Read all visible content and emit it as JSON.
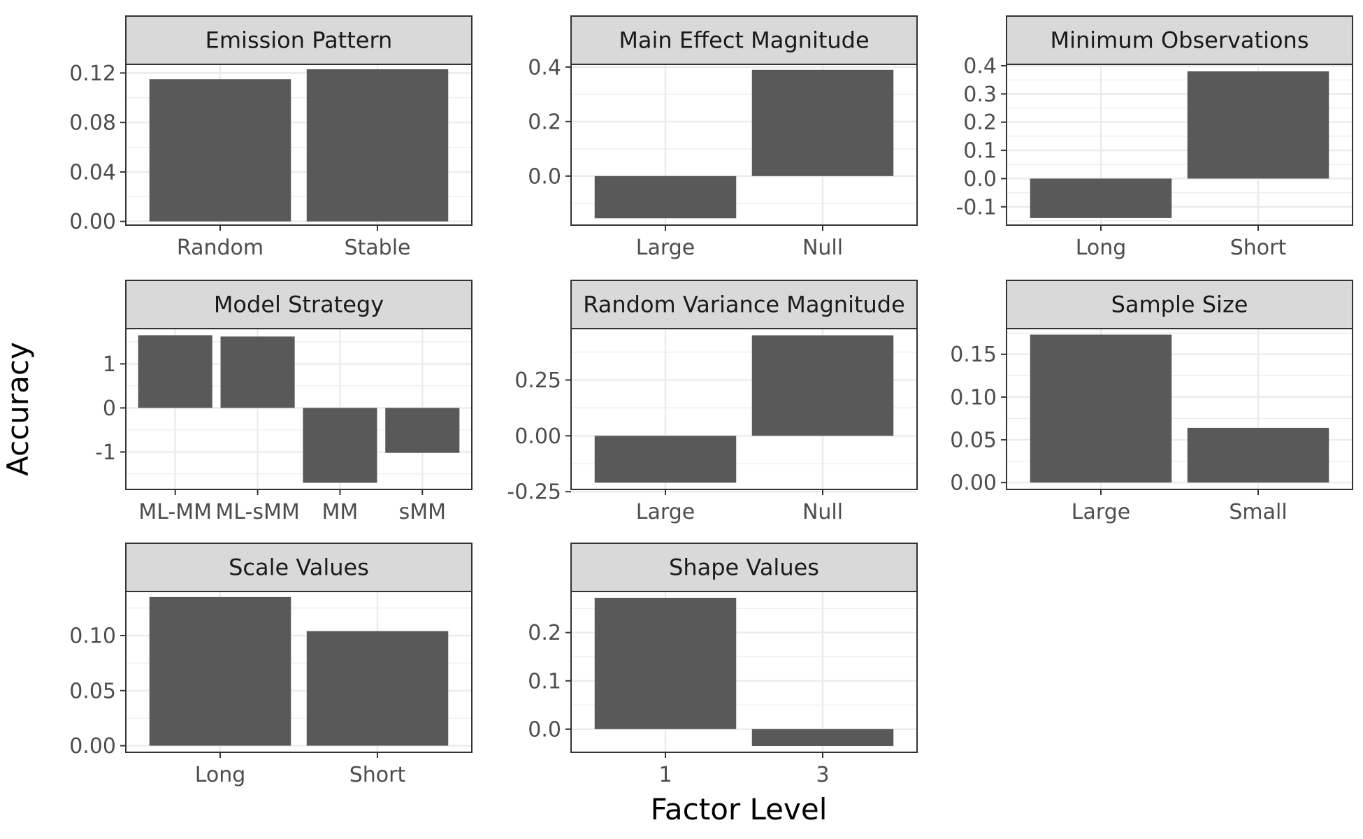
{
  "chart_data": {
    "type": "bar",
    "xlabel": "Factor Level",
    "ylabel": "Accuracy",
    "grid": true,
    "colors": {
      "bar": "#595959",
      "strip_fill": "#d9d9d9",
      "panel_border": "#333333",
      "grid": "#ebebeb"
    },
    "panels": [
      {
        "title": "Emission Pattern",
        "categories": [
          "Random",
          "Stable"
        ],
        "values": [
          0.115,
          0.123
        ],
        "ylim": [
          -0.003,
          0.127
        ],
        "yticks": [
          0.0,
          0.04,
          0.08,
          0.12
        ],
        "tick_labels": [
          "0.00",
          "0.04",
          "0.08",
          "0.12"
        ]
      },
      {
        "title": "Main Effect Magnitude",
        "categories": [
          "Large",
          "Null"
        ],
        "values": [
          -0.155,
          0.39
        ],
        "ylim": [
          -0.18,
          0.41
        ],
        "yticks": [
          0.0,
          0.2,
          0.4
        ],
        "tick_labels": [
          "0.0",
          "0.2",
          "0.4"
        ]
      },
      {
        "title": "Minimum Observations",
        "categories": [
          "Long",
          "Short"
        ],
        "values": [
          -0.14,
          0.38
        ],
        "ylim": [
          -0.165,
          0.405
        ],
        "yticks": [
          -0.1,
          0.0,
          0.1,
          0.2,
          0.3,
          0.4
        ],
        "tick_labels": [
          "-0.1",
          "0.0",
          "0.1",
          "0.2",
          "0.3",
          "0.4"
        ]
      },
      {
        "title": "Model Strategy",
        "categories": [
          "ML-MM",
          "ML-sMM",
          "MM",
          "sMM"
        ],
        "values": [
          1.65,
          1.62,
          -1.7,
          -1.02
        ],
        "ylim": [
          -1.85,
          1.8
        ],
        "yticks": [
          -1,
          0,
          1
        ],
        "tick_labels": [
          "-1",
          "0",
          "1"
        ]
      },
      {
        "title": "Random Variance Magnitude",
        "categories": [
          "Large",
          "Null"
        ],
        "values": [
          -0.21,
          0.45
        ],
        "ylim": [
          -0.24,
          0.48
        ],
        "yticks": [
          -0.25,
          0.0,
          0.25
        ],
        "tick_labels": [
          "-0.25",
          "0.00",
          "0.25"
        ]
      },
      {
        "title": "Sample Size",
        "categories": [
          "Large",
          "Small"
        ],
        "values": [
          0.173,
          0.064
        ],
        "ylim": [
          -0.008,
          0.18
        ],
        "yticks": [
          0.0,
          0.05,
          0.1,
          0.15
        ],
        "tick_labels": [
          "0.00",
          "0.05",
          "0.10",
          "0.15"
        ]
      },
      {
        "title": "Scale Values",
        "categories": [
          "Long",
          "Short"
        ],
        "values": [
          0.135,
          0.104
        ],
        "ylim": [
          -0.006,
          0.14
        ],
        "yticks": [
          0.0,
          0.05,
          0.1
        ],
        "tick_labels": [
          "0.00",
          "0.05",
          "0.10"
        ]
      },
      {
        "title": "Shape Values",
        "categories": [
          "1",
          "3"
        ],
        "values": [
          0.272,
          -0.035
        ],
        "ylim": [
          -0.048,
          0.285
        ],
        "yticks": [
          0.0,
          0.1,
          0.2
        ],
        "tick_labels": [
          "0.0",
          "0.1",
          "0.2"
        ]
      }
    ]
  }
}
